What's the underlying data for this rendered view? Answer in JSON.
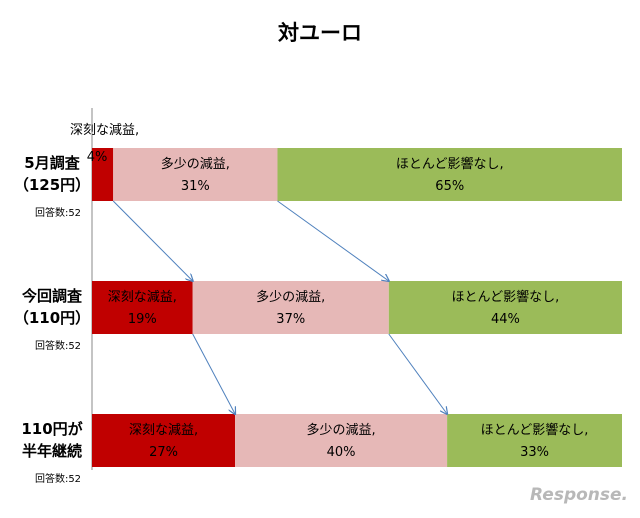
{
  "chart_data": {
    "type": "bar",
    "orientation": "horizontal",
    "stacked": true,
    "percent": true,
    "title": "対ユーロ",
    "colors": {
      "severe": "#c00000",
      "slight": "#e6b8b7",
      "none": "#9bbb59"
    },
    "bars": [
      {
        "label_line1": "5月調査",
        "label_line2": "（125円）",
        "respondents": "回答数:52",
        "segments": [
          {
            "category": "深刻な減益,",
            "value": 4,
            "value_label": "4%"
          },
          {
            "category": "多少の減益,",
            "value": 31,
            "value_label": "31%"
          },
          {
            "category": "ほとんど影響なし,",
            "value": 65,
            "value_label": "65%"
          }
        ]
      },
      {
        "label_line1": "今回調査",
        "label_line2": "（110円）",
        "respondents": "回答数:52",
        "segments": [
          {
            "category": "深刻な減益,",
            "value": 19,
            "value_label": "19%"
          },
          {
            "category": "多少の減益,",
            "value": 37,
            "value_label": "37%"
          },
          {
            "category": "ほとんど影響なし,",
            "value": 44,
            "value_label": "44%"
          }
        ]
      },
      {
        "label_line1": "110円が",
        "label_line2": "半年継続",
        "respondents": "回答数:52",
        "segments": [
          {
            "category": "深刻な減益,",
            "value": 27,
            "value_label": "27%"
          },
          {
            "category": "多少の減益,",
            "value": 40,
            "value_label": "40%"
          },
          {
            "category": "ほとんど影響なし,",
            "value": 33,
            "value_label": "33%"
          }
        ]
      }
    ]
  },
  "watermark": "Response."
}
